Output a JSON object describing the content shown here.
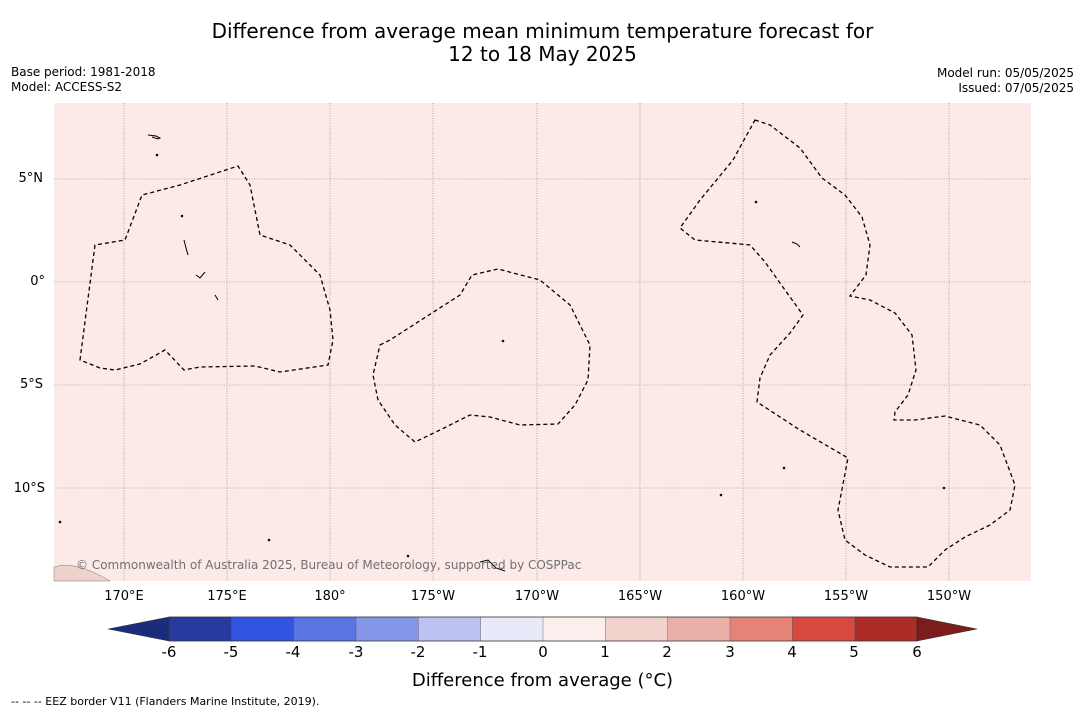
{
  "header": {
    "title_line1": "Difference from average mean minimum temperature forecast for",
    "title_line2": "12 to 18 May 2025",
    "base_period": "Base period: 1981-2018",
    "model": "Model: ACCESS-S2",
    "model_run": "Model run: 05/05/2025",
    "issued": "Issued: 07/05/2025"
  },
  "map": {
    "fill_color": "#fbeae8",
    "grid_color": "#7a7a7a",
    "border_color": "#000000",
    "lat_labels": [
      "5°N",
      "0°",
      "5°S",
      "10°S"
    ],
    "lon_labels": [
      "170°E",
      "175°E",
      "180°",
      "175°W",
      "170°W",
      "165°W",
      "160°W",
      "155°W",
      "150°W"
    ],
    "copyright": "© Commonwealth of Australia 2025, Bureau of Meteorology, supported by COSPPac"
  },
  "colorbar": {
    "title": "Difference from average (°C)",
    "ticks": [
      "-6",
      "-5",
      "-4",
      "-3",
      "-2",
      "-1",
      "0",
      "1",
      "2",
      "3",
      "4",
      "5",
      "6"
    ],
    "colors": [
      "#283a9e",
      "#3155e0",
      "#5a74e2",
      "#8596e8",
      "#bcc3f2",
      "#e8eafa",
      "#fcefed",
      "#f2d2cd",
      "#eab0a8",
      "#e58378",
      "#d84a40",
      "#ac2c26"
    ],
    "under_color": "#1c2c7d",
    "over_color": "#7b1e1b"
  },
  "footer": {
    "legend_text": "-- -- -- EEZ border V11 (Flanders Marine Institute, 2019)."
  }
}
